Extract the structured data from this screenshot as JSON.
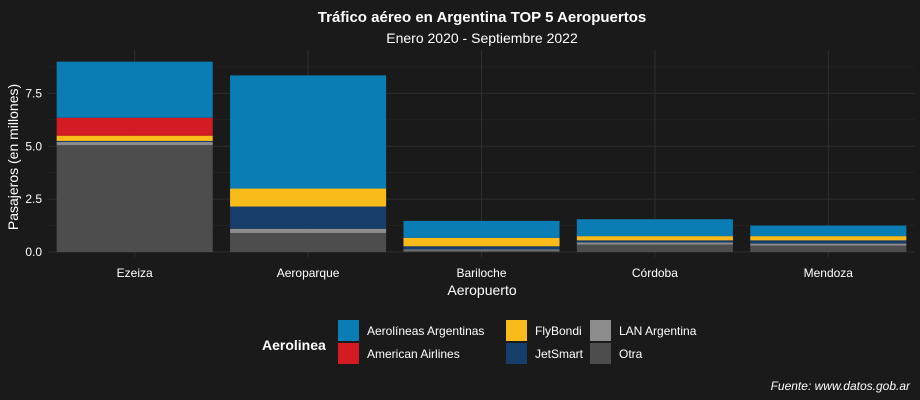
{
  "chart_data": {
    "type": "bar",
    "stacked": true,
    "title": "Tráfico aéreo en Argentina TOP 5 Aeropuertos",
    "subtitle": "Enero 2020 - Septiembre 2022",
    "xlabel": "Aeropuerto",
    "ylabel": "Pasajeros (en millones)",
    "caption": "Fuente: www.datos.gob.ar",
    "ylim": [
      0,
      9.5
    ],
    "yticks": [
      0,
      2.5,
      5,
      7.5
    ],
    "ytick_labels": [
      "0.0",
      "2.5",
      "5.0",
      "7.5"
    ],
    "grid": true,
    "legend_position": "bottom",
    "legend_title": "Aerolinea",
    "categories": [
      "Ezeiza",
      "Aeroparque",
      "Bariloche",
      "Córdoba",
      "Mendoza"
    ],
    "series": [
      {
        "name": "Otra",
        "color": "#4d4d4d",
        "values": [
          5.05,
          0.9,
          0.07,
          0.35,
          0.3
        ]
      },
      {
        "name": "LAN Argentina",
        "color": "#8c8c8c",
        "values": [
          0.15,
          0.2,
          0.05,
          0.1,
          0.1
        ]
      },
      {
        "name": "JetSmart",
        "color": "#173e6b",
        "values": [
          0.05,
          1.05,
          0.15,
          0.1,
          0.15
        ]
      },
      {
        "name": "FlyBondi",
        "color": "#f8bb1a",
        "values": [
          0.25,
          0.85,
          0.4,
          0.2,
          0.2
        ]
      },
      {
        "name": "American Airlines",
        "color": "#d41a22",
        "values": [
          0.85,
          0.0,
          0.0,
          0.0,
          0.0
        ]
      },
      {
        "name": "Aerolíneas Argentinas",
        "color": "#0a7db4",
        "values": [
          2.65,
          5.35,
          0.8,
          0.8,
          0.5
        ]
      }
    ],
    "legend_order": [
      "Aerolíneas Argentinas",
      "American Airlines",
      "FlyBondi",
      "JetSmart",
      "LAN Argentina",
      "Otra"
    ]
  }
}
